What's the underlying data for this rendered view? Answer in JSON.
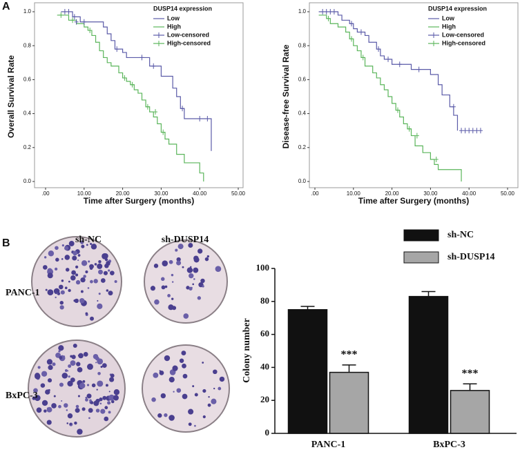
{
  "panel_labels": [
    "A",
    "B"
  ],
  "colony_images": {
    "columns": [
      "sh-NC",
      "sh-DUSP14"
    ],
    "rows": [
      "PANC-1",
      "BxPC-3"
    ]
  },
  "chart_data": [
    {
      "type": "step",
      "x_label": "Time after Surgery (months)",
      "y_label": "Overall Survival Rate",
      "legend_title": "DUSP14 expression",
      "legend": "upper right",
      "xlim": [
        0,
        50
      ],
      "ylim": [
        0,
        1
      ],
      "xticks": [
        {
          "value": 0,
          "label": ".00"
        },
        {
          "value": 10,
          "label": "10.00"
        },
        {
          "value": 20,
          "label": "20.00"
        },
        {
          "value": 30,
          "label": "30.00"
        },
        {
          "value": 40,
          "label": "40.00"
        },
        {
          "value": 50,
          "label": "50.00"
        }
      ],
      "yticks": [
        {
          "value": 0,
          "label": "0.0"
        },
        0.2,
        0.4,
        0.6,
        0.8,
        {
          "value": 1,
          "label": "1.0"
        }
      ],
      "series": [
        {
          "name": "Low",
          "color": "#5a5aa8",
          "marker": "line",
          "x": [
            4,
            7,
            9,
            15,
            16,
            17,
            18,
            20,
            21,
            27,
            30,
            33,
            34,
            35,
            36,
            43
          ],
          "values": [
            1.0,
            0.97,
            0.94,
            0.91,
            0.87,
            0.83,
            0.78,
            0.76,
            0.73,
            0.68,
            0.62,
            0.55,
            0.5,
            0.43,
            0.37,
            0.18
          ]
        },
        {
          "name": "High",
          "color": "#5ab55a",
          "marker": "line",
          "x": [
            3,
            6,
            8,
            10,
            11,
            12,
            13,
            14,
            15,
            16,
            17,
            19,
            20,
            21,
            22,
            23,
            24,
            25,
            26,
            27,
            28,
            29,
            30,
            31,
            32,
            34,
            36,
            40,
            41
          ],
          "values": [
            0.98,
            0.95,
            0.93,
            0.91,
            0.89,
            0.86,
            0.82,
            0.77,
            0.73,
            0.7,
            0.68,
            0.64,
            0.61,
            0.59,
            0.57,
            0.54,
            0.52,
            0.48,
            0.44,
            0.41,
            0.38,
            0.34,
            0.29,
            0.25,
            0.22,
            0.16,
            0.11,
            0.05,
            0.0
          ]
        },
        {
          "name": "Low-censored",
          "color": "#5a5aa8",
          "marker": "plus",
          "x": [
            5,
            6,
            7.5,
            8,
            10,
            18.5,
            25,
            28,
            35.5,
            40,
            42
          ],
          "values": [
            1.0,
            1.0,
            0.97,
            0.94,
            0.94,
            0.78,
            0.73,
            0.68,
            0.43,
            0.37,
            0.37
          ]
        },
        {
          "name": "High-censored",
          "color": "#5ab55a",
          "marker": "plus",
          "x": [
            4,
            7,
            11.5,
            20.5,
            22.5,
            26.5,
            28.5,
            30.5
          ],
          "values": [
            0.98,
            0.95,
            0.89,
            0.61,
            0.57,
            0.44,
            0.41,
            0.29
          ]
        }
      ]
    },
    {
      "type": "step",
      "x_label": "Time after Surgery (months)",
      "y_label": "Disease-free Survival Rate",
      "legend_title": "DUSP14 expression",
      "legend": "upper right",
      "xlim": [
        0,
        50
      ],
      "ylim": [
        0,
        1
      ],
      "xticks": [
        {
          "value": 0,
          "label": ".00"
        },
        {
          "value": 10,
          "label": "10.00"
        },
        {
          "value": 20,
          "label": "20.00"
        },
        {
          "value": 30,
          "label": "30.00"
        },
        {
          "value": 40,
          "label": "40.00"
        },
        {
          "value": 50,
          "label": "50.00"
        }
      ],
      "yticks": [
        {
          "value": 0,
          "label": "0.0"
        },
        0.2,
        0.4,
        0.6,
        0.8,
        {
          "value": 1,
          "label": "1.0"
        }
      ],
      "series": [
        {
          "name": "Low",
          "color": "#5a5aa8",
          "marker": "line",
          "x": [
            1,
            6,
            7,
            9,
            10,
            11,
            13,
            14,
            16,
            17,
            18,
            20,
            25,
            30,
            32,
            33,
            35,
            36,
            37
          ],
          "values": [
            1.0,
            0.98,
            0.95,
            0.93,
            0.9,
            0.88,
            0.86,
            0.82,
            0.78,
            0.74,
            0.72,
            0.69,
            0.66,
            0.63,
            0.57,
            0.51,
            0.44,
            0.39,
            0.3
          ]
        },
        {
          "name": "High",
          "color": "#5ab55a",
          "marker": "line",
          "x": [
            1,
            3,
            4,
            6,
            8,
            9,
            10,
            11,
            12,
            13,
            15,
            16,
            17,
            18,
            19,
            20,
            21,
            22,
            23,
            24,
            25,
            26,
            28,
            30,
            31,
            32,
            38
          ],
          "values": [
            0.98,
            0.96,
            0.93,
            0.91,
            0.88,
            0.84,
            0.8,
            0.77,
            0.73,
            0.68,
            0.64,
            0.61,
            0.57,
            0.54,
            0.5,
            0.46,
            0.42,
            0.38,
            0.34,
            0.31,
            0.27,
            0.21,
            0.17,
            0.13,
            0.1,
            0.07,
            0.0
          ]
        },
        {
          "name": "Low-censored",
          "color": "#5a5aa8",
          "marker": "plus",
          "x": [
            2,
            3,
            4,
            5,
            9.5,
            12,
            16.5,
            19,
            22,
            27,
            36,
            38,
            39,
            40,
            41,
            42,
            43
          ],
          "values": [
            1.0,
            1.0,
            1.0,
            1.0,
            0.93,
            0.88,
            0.78,
            0.72,
            0.69,
            0.66,
            0.44,
            0.3,
            0.3,
            0.3,
            0.3,
            0.3,
            0.3
          ]
        },
        {
          "name": "High-censored",
          "color": "#5ab55a",
          "marker": "plus",
          "x": [
            3.5,
            9.5,
            12.5,
            21.5,
            24.5,
            26.5,
            31.5
          ],
          "values": [
            0.96,
            0.84,
            0.73,
            0.42,
            0.31,
            0.27,
            0.13
          ]
        }
      ]
    },
    {
      "type": "bar",
      "y_label": "Colony number",
      "legend": "upper right",
      "categories": [
        "PANC-1",
        "BxPC-3"
      ],
      "ylim": [
        0,
        100
      ],
      "yticks": [
        0,
        20,
        40,
        60,
        80,
        100
      ],
      "series": [
        {
          "name": "sh-NC",
          "color": "#111111",
          "values": [
            75,
            83
          ],
          "errors": [
            2,
            3
          ]
        },
        {
          "name": "sh-DUSP14",
          "color": "#a6a6a6",
          "values": [
            37,
            26
          ],
          "errors": [
            4.5,
            4
          ],
          "significance": [
            "***",
            "***"
          ]
        }
      ]
    }
  ]
}
